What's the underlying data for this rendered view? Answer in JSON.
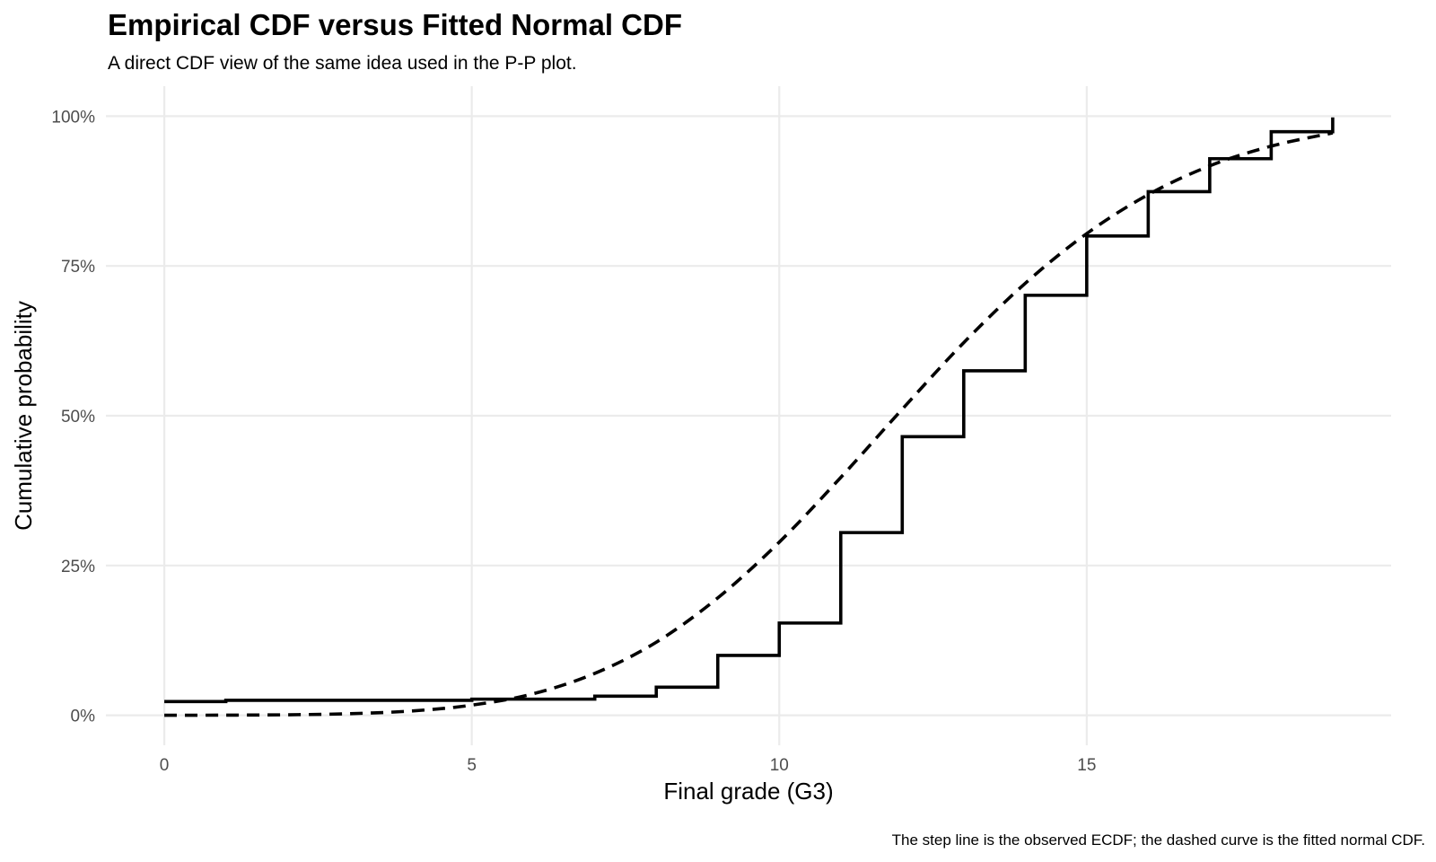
{
  "title": "Empirical CDF versus Fitted Normal CDF",
  "subtitle": "A direct CDF view of the same idea used in the P-P plot.",
  "caption": "The step line is the observed ECDF; the dashed curve is the fitted normal CDF.",
  "chart_data": {
    "type": "line",
    "xlabel": "Final grade (G3)",
    "ylabel": "Cumulative probability",
    "xlim": [
      -0.95,
      19.95
    ],
    "ylim": [
      -0.05,
      1.05
    ],
    "x_ticks": [
      0,
      5,
      10,
      15
    ],
    "x_tick_labels": [
      "0",
      "5",
      "10",
      "15"
    ],
    "y_ticks": [
      0,
      0.25,
      0.5,
      0.75,
      1
    ],
    "y_tick_labels": [
      "0%",
      "25%",
      "50%",
      "75%",
      "100%"
    ],
    "grid": true,
    "series": [
      {
        "style": "step",
        "line": "solid",
        "color": "#000000",
        "x": [
          0,
          1,
          2,
          3,
          4,
          5,
          6,
          7,
          8,
          9,
          10,
          11,
          12,
          13,
          14,
          15,
          16,
          17,
          18,
          19
        ],
        "y": [
          0.023,
          0.025,
          0.025,
          0.025,
          0.025,
          0.027,
          0.027,
          0.032,
          0.047,
          0.1,
          0.154,
          0.305,
          0.465,
          0.575,
          0.701,
          0.8,
          0.874,
          0.929,
          0.974,
          0.998
        ]
      },
      {
        "style": "smooth",
        "line": "dashed",
        "color": "#000000",
        "x": [
          0,
          1,
          2,
          3,
          4,
          5,
          6,
          7,
          8,
          9,
          10,
          11,
          12,
          13,
          14,
          15,
          16,
          17,
          18,
          19
        ],
        "y": [
          0.0001,
          0.0003,
          0.0009,
          0.0027,
          0.0071,
          0.017,
          0.036,
          0.07,
          0.122,
          0.196,
          0.289,
          0.397,
          0.511,
          0.622,
          0.721,
          0.804,
          0.869,
          0.917,
          0.95,
          0.972
        ]
      }
    ]
  }
}
